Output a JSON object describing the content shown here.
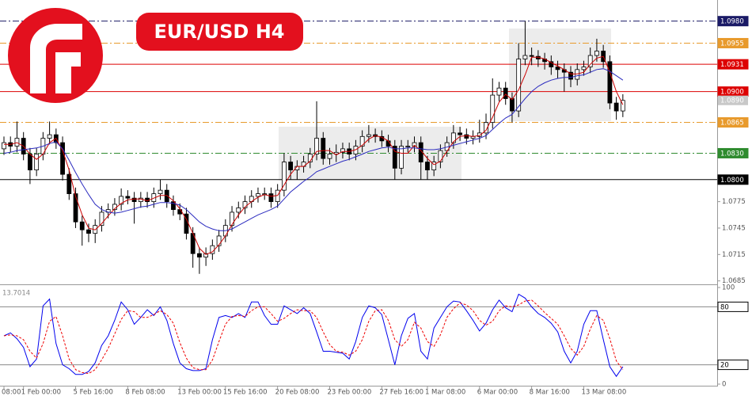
{
  "chart_data": [
    {
      "type": "candlestick",
      "title": "EUR/USD H4",
      "categories": [
        "08:00",
        null,
        null,
        "1 Feb 00:00",
        null,
        null,
        null,
        null,
        null,
        null,
        null,
        "5 Feb 16:00",
        null,
        null,
        null,
        null,
        null,
        null,
        null,
        "8 Feb 08:00",
        null,
        null,
        null,
        null,
        null,
        null,
        null,
        "13 Feb 00:00",
        null,
        null,
        null,
        null,
        null,
        null,
        "15 Feb 16:00",
        null,
        null,
        null,
        null,
        null,
        null,
        null,
        "20 Feb 08:00",
        null,
        null,
        null,
        null,
        null,
        null,
        null,
        "23 Feb 00:00",
        null,
        null,
        null,
        null,
        null,
        null,
        null,
        "27 Feb 16:00",
        null,
        null,
        null,
        null,
        null,
        null,
        "1 Mar 08:00",
        null,
        null,
        null,
        null,
        null,
        null,
        null,
        "6 Mar 00:00",
        null,
        null,
        null,
        null,
        null,
        null,
        null,
        "8 Mar 16:00",
        null,
        null,
        null,
        null,
        null,
        null,
        null,
        "13 Mar 08:00",
        null,
        null,
        null,
        null,
        null,
        null
      ],
      "open": [
        1.0835,
        1.0842,
        1.0838,
        1.0847,
        1.0829,
        1.0811,
        1.0829,
        1.0847,
        1.0851,
        1.0842,
        1.0806,
        1.0784,
        1.0752,
        1.0743,
        1.0739,
        1.0748,
        1.0763,
        1.0766,
        1.0772,
        1.0781,
        1.0779,
        1.0775,
        1.0779,
        1.0775,
        1.0784,
        1.0788,
        1.0775,
        1.0766,
        1.0761,
        1.0739,
        1.0716,
        1.0712,
        1.0716,
        1.0725,
        1.0736,
        1.0748,
        1.0763,
        1.0768,
        1.0775,
        1.0781,
        1.0784,
        1.0784,
        1.0775,
        1.0788,
        1.082,
        1.0811,
        1.0815,
        1.082,
        1.0829,
        1.0847,
        1.0824,
        1.0829,
        1.0831,
        1.0835,
        1.0829,
        1.0838,
        1.0849,
        1.0851,
        1.0849,
        1.0844,
        1.0838,
        1.0813,
        1.0838,
        1.0838,
        1.0842,
        1.082,
        1.0811,
        1.082,
        1.0833,
        1.0842,
        1.0853,
        1.0851,
        1.0847,
        1.0849,
        1.0853,
        1.0865,
        1.0896,
        1.0904,
        1.0892,
        1.0878,
        1.0937,
        1.0941,
        1.094,
        1.0937,
        1.0934,
        1.0928,
        1.0925,
        1.0922,
        1.0914,
        1.0925,
        1.0928,
        1.0941,
        1.0946,
        1.0934,
        1.0887,
        1.0878
      ],
      "high": [
        1.0849,
        1.0849,
        1.0866,
        1.0854,
        1.0836,
        1.0836,
        1.0854,
        1.0866,
        1.0858,
        1.0849,
        1.0813,
        1.0791,
        1.0759,
        1.075,
        1.0755,
        1.077,
        1.0773,
        1.0779,
        1.079,
        1.0788,
        1.0786,
        1.0786,
        1.0786,
        1.0791,
        1.08,
        1.0795,
        1.0782,
        1.0773,
        1.0768,
        1.0746,
        1.0723,
        1.0723,
        1.0732,
        1.0743,
        1.0755,
        1.077,
        1.0775,
        1.0782,
        1.0788,
        1.0791,
        1.0791,
        1.0791,
        1.0795,
        1.083,
        1.0827,
        1.0822,
        1.0827,
        1.0836,
        1.0889,
        1.0854,
        1.0836,
        1.084,
        1.0842,
        1.0842,
        1.0845,
        1.0856,
        1.0862,
        1.0858,
        1.0856,
        1.0851,
        1.0845,
        1.0845,
        1.0845,
        1.0849,
        1.0849,
        1.0827,
        1.0827,
        1.084,
        1.0849,
        1.0862,
        1.086,
        1.0858,
        1.0856,
        1.0868,
        1.0875,
        1.0915,
        1.0911,
        1.0911,
        1.0899,
        1.0955,
        1.098,
        1.095,
        1.0947,
        1.0944,
        1.0941,
        1.0935,
        1.0932,
        1.0929,
        1.0932,
        1.0935,
        1.095,
        1.096,
        1.0953,
        1.0941,
        1.0894,
        1.0897
      ],
      "low": [
        1.0828,
        1.0831,
        1.0831,
        1.0822,
        1.0795,
        1.0804,
        1.0822,
        1.084,
        1.0835,
        1.0799,
        1.0777,
        1.0745,
        1.0725,
        1.0729,
        1.0728,
        1.0741,
        1.0756,
        1.0759,
        1.0765,
        1.0772,
        1.075,
        1.0768,
        1.0768,
        1.0768,
        1.0777,
        1.0768,
        1.0759,
        1.0754,
        1.0732,
        1.07,
        1.0693,
        1.0702,
        1.0709,
        1.0718,
        1.0729,
        1.0741,
        1.0756,
        1.0761,
        1.0768,
        1.0774,
        1.0777,
        1.0768,
        1.0768,
        1.0781,
        1.08,
        1.08,
        1.0808,
        1.0813,
        1.0822,
        1.0817,
        1.0817,
        1.082,
        1.0824,
        1.0822,
        1.0822,
        1.0831,
        1.0842,
        1.0842,
        1.0837,
        1.0831,
        1.08,
        1.0806,
        1.0831,
        1.0831,
        1.08,
        1.08,
        1.0804,
        1.0813,
        1.0826,
        1.0835,
        1.0844,
        1.084,
        1.084,
        1.0842,
        1.0846,
        1.0858,
        1.0889,
        1.0885,
        1.0865,
        1.0871,
        1.093,
        1.093,
        1.0928,
        1.0925,
        1.0919,
        1.0915,
        1.09,
        1.0905,
        1.0907,
        1.0918,
        1.0921,
        1.0934,
        1.0927,
        1.088,
        1.0868,
        1.0871
      ],
      "close": [
        1.0842,
        1.0838,
        1.0847,
        1.0829,
        1.0811,
        1.0829,
        1.0847,
        1.0851,
        1.0842,
        1.0806,
        1.0784,
        1.0752,
        1.0743,
        1.0739,
        1.0748,
        1.0763,
        1.0766,
        1.0772,
        1.0781,
        1.0779,
        1.0775,
        1.0779,
        1.0775,
        1.0784,
        1.0788,
        1.0775,
        1.0766,
        1.0761,
        1.0739,
        1.0716,
        1.0712,
        1.0716,
        1.0725,
        1.0736,
        1.0748,
        1.0763,
        1.0768,
        1.0775,
        1.0781,
        1.0784,
        1.0784,
        1.0775,
        1.0788,
        1.082,
        1.0811,
        1.0815,
        1.082,
        1.0829,
        1.0847,
        1.0824,
        1.0829,
        1.0831,
        1.0835,
        1.0829,
        1.0838,
        1.0849,
        1.0851,
        1.0849,
        1.0844,
        1.0838,
        1.0813,
        1.0838,
        1.0838,
        1.0842,
        1.082,
        1.0811,
        1.082,
        1.0833,
        1.0842,
        1.0853,
        1.0851,
        1.0847,
        1.0849,
        1.0853,
        1.0865,
        1.0896,
        1.0904,
        1.0892,
        1.0878,
        1.0937,
        1.0941,
        1.094,
        1.0937,
        1.0934,
        1.0928,
        1.0925,
        1.0922,
        1.0914,
        1.0925,
        1.0928,
        1.0941,
        1.0946,
        1.0934,
        1.0887,
        1.0878,
        1.089
      ],
      "up_color": "#ffffff",
      "down_color": "#000000",
      "series": [
        {
          "color": "#cc0000",
          "values": [
            1.084,
            1.084,
            1.0842,
            1.0838,
            1.0829,
            1.0823,
            1.0829,
            1.0842,
            1.0847,
            1.0833,
            1.0811,
            1.0781,
            1.076,
            1.0745,
            1.0743,
            1.075,
            1.0759,
            1.0767,
            1.0773,
            1.0777,
            1.0778,
            1.0778,
            1.0776,
            1.0779,
            1.0782,
            1.0782,
            1.0776,
            1.0767,
            1.0755,
            1.0739,
            1.0722,
            1.0715,
            1.0718,
            1.0726,
            1.0736,
            1.0749,
            1.076,
            1.0769,
            1.0775,
            1.078,
            1.0783,
            1.0781,
            1.0782,
            1.0794,
            1.0806,
            1.0815,
            1.0815,
            1.0821,
            1.0832,
            1.0833,
            1.0833,
            1.0828,
            1.0832,
            1.0832,
            1.0834,
            1.0839,
            1.0846,
            1.085,
            1.0848,
            1.0844,
            1.0832,
            1.083,
            1.083,
            1.0839,
            1.0833,
            1.0824,
            1.0817,
            1.0821,
            1.0832,
            1.0843,
            1.0849,
            1.085,
            1.0849,
            1.085,
            1.0856,
            1.0871,
            1.0888,
            1.0897,
            1.0891,
            1.0902,
            1.0919,
            1.0939,
            1.0939,
            1.0937,
            1.0933,
            1.0929,
            1.0925,
            1.092,
            1.092,
            1.0922,
            1.0931,
            1.0938,
            1.094,
            1.0922,
            1.09,
            1.0885
          ]
        },
        {
          "color": "#2b2bbf",
          "values": [
            1.083,
            1.0831,
            1.0833,
            1.0834,
            1.0835,
            1.0836,
            1.0838,
            1.0841,
            1.0843,
            1.0835,
            1.0822,
            1.0808,
            1.0795,
            1.0783,
            1.0772,
            1.0766,
            1.0763,
            1.0762,
            1.0763,
            1.0765,
            1.0767,
            1.0769,
            1.077,
            1.0772,
            1.0774,
            1.0774,
            1.0773,
            1.0771,
            1.0766,
            1.0759,
            1.0752,
            1.0747,
            1.0744,
            1.0742,
            1.0742,
            1.0744,
            1.0748,
            1.0752,
            1.0756,
            1.076,
            1.0763,
            1.0766,
            1.077,
            1.0778,
            1.0786,
            1.0792,
            1.0798,
            1.0803,
            1.0809,
            1.0812,
            1.0815,
            1.0818,
            1.0821,
            1.0823,
            1.0826,
            1.0829,
            1.0832,
            1.0834,
            1.0836,
            1.0837,
            1.0835,
            1.0835,
            1.0836,
            1.0836,
            1.0835,
            1.0834,
            1.0834,
            1.0835,
            1.0837,
            1.0839,
            1.0841,
            1.0843,
            1.0845,
            1.0847,
            1.085,
            1.0857,
            1.0864,
            1.087,
            1.0874,
            1.0883,
            1.0892,
            1.09,
            1.0906,
            1.091,
            1.0913,
            1.0915,
            1.0916,
            1.0916,
            1.0918,
            1.0919,
            1.0922,
            1.0925,
            1.0926,
            1.0923,
            1.0918,
            1.0913
          ]
        }
      ],
      "ylim": [
        1.0682,
        1.1004
      ],
      "yticks": [
        1.0685,
        1.0715,
        1.0745,
        1.0775
      ],
      "levels": [
        {
          "value": 1.098,
          "label": "1.0980",
          "color": "#1a1a66",
          "style": "dash-dot"
        },
        {
          "value": 1.0955,
          "color": "#e89a2c",
          "style": "dash-dot"
        },
        {
          "value": 1.0931,
          "color": "#dd0000",
          "style": "solid"
        },
        {
          "value": 1.09,
          "label": "1.0900",
          "color": "#dd0000",
          "style": "solid"
        },
        {
          "value": 1.0865,
          "color": "#e89a2c",
          "style": "dash-dot"
        },
        {
          "value": 1.083,
          "label": "1.0830",
          "color": "#2e8b2e",
          "style": "dash-dot"
        },
        {
          "value": 1.08,
          "label": "1.0800",
          "color": "#000000",
          "style": "solid"
        }
      ],
      "current": {
        "value": 1.089,
        "label": "1.0890",
        "color": "#c8c8c8"
      }
    },
    {
      "type": "line",
      "readout": "13.7014",
      "series": [
        {
          "color": "#0000ee",
          "style": "solid",
          "values": [
            50,
            53,
            47,
            38,
            18,
            26,
            81,
            88,
            42,
            20,
            16,
            10,
            10,
            13,
            22,
            40,
            50,
            66,
            85,
            77,
            62,
            69,
            77,
            71,
            80,
            66,
            42,
            22,
            16,
            14,
            14,
            16,
            46,
            69,
            71,
            69,
            73,
            69,
            85,
            85,
            71,
            62,
            62,
            81,
            77,
            73,
            79,
            73,
            54,
            34,
            34,
            33,
            32,
            26,
            44,
            69,
            81,
            79,
            72,
            46,
            20,
            50,
            68,
            73,
            34,
            26,
            58,
            69,
            80,
            86,
            85,
            76,
            66,
            55,
            63,
            77,
            87,
            79,
            75,
            93,
            89,
            80,
            73,
            69,
            63,
            54,
            34,
            22,
            34,
            62,
            76,
            76,
            46,
            18,
            8,
            18
          ]
        },
        {
          "color": "#ee0000",
          "style": "dashed",
          "values": [
            50,
            51,
            50,
            46,
            34,
            27,
            42,
            65,
            70,
            50,
            26,
            15,
            12,
            11,
            15,
            25,
            37,
            52,
            67,
            76,
            75,
            69,
            69,
            72,
            76,
            72,
            63,
            43,
            27,
            17,
            15,
            15,
            25,
            44,
            62,
            70,
            71,
            70,
            76,
            80,
            80,
            73,
            65,
            68,
            73,
            77,
            76,
            76,
            69,
            54,
            41,
            34,
            33,
            30,
            34,
            46,
            65,
            76,
            77,
            66,
            46,
            39,
            46,
            64,
            58,
            44,
            39,
            51,
            69,
            78,
            84,
            82,
            76,
            66,
            61,
            65,
            76,
            81,
            80,
            82,
            86,
            87,
            81,
            74,
            68,
            62,
            50,
            37,
            30,
            39,
            57,
            71,
            66,
            47,
            24,
            15
          ]
        }
      ],
      "ylim": [
        0,
        100
      ],
      "yticks": [
        0,
        100
      ],
      "levels": [
        20,
        80
      ]
    }
  ]
}
